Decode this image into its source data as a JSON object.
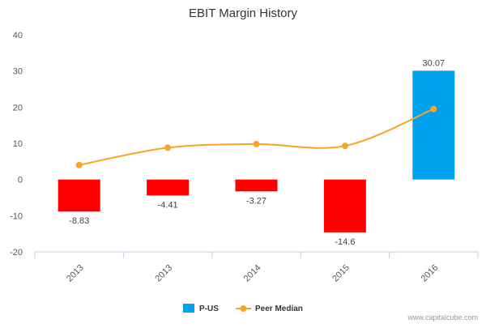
{
  "chart_data": {
    "type": "bar",
    "title": "EBIT Margin History",
    "categories": [
      "2013",
      "2013",
      "2014",
      "2015",
      "2016"
    ],
    "ylim": [
      -20,
      40
    ],
    "yticks": [
      -20,
      -10,
      0,
      10,
      20,
      30,
      40
    ],
    "grid": false,
    "legend_position": "bottom-center",
    "series": [
      {
        "name": "P-US",
        "type": "bar",
        "values": [
          -8.83,
          -4.41,
          -3.27,
          -14.6,
          30.07
        ],
        "labels": [
          "-8.83",
          "-4.41",
          "-3.27",
          "-14.6",
          "30.07"
        ],
        "negative_color": "#ff0000",
        "positive_color": "#00a2ef"
      },
      {
        "name": "Peer Median",
        "type": "line",
        "values": [
          4.0,
          8.8,
          9.8,
          9.3,
          19.5
        ],
        "color": "#f5a623"
      }
    ]
  },
  "credit": "www.capitalcube.com",
  "colors": {
    "axis": "#c0d0e0",
    "text": "#555555"
  }
}
